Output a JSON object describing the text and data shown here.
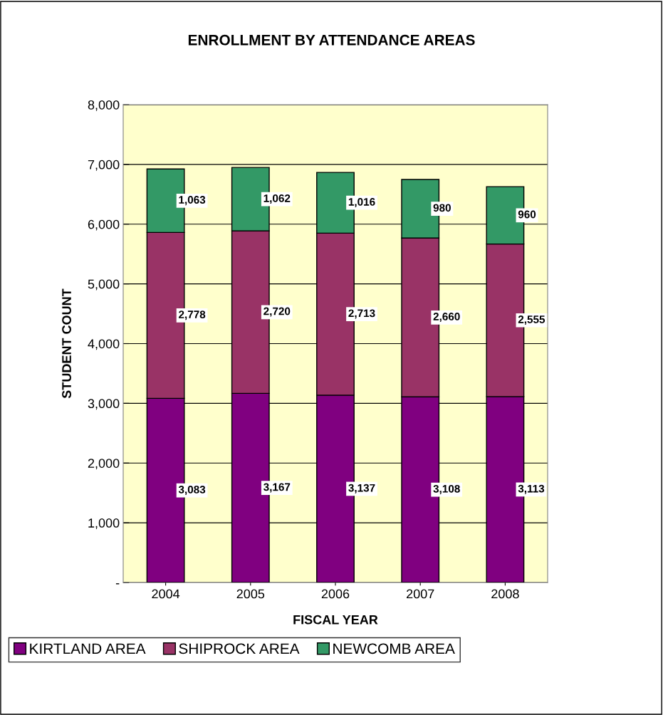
{
  "chart_data": {
    "type": "bar",
    "stacked": true,
    "title": "ENROLLMENT BY ATTENDANCE AREAS",
    "xlabel": "FISCAL YEAR",
    "ylabel": "STUDENT COUNT",
    "categories": [
      "2004",
      "2005",
      "2006",
      "2007",
      "2008"
    ],
    "series": [
      {
        "name": "KIRTLAND AREA",
        "color": "#800080",
        "values": [
          3083,
          3167,
          3137,
          3108,
          3113
        ],
        "value_labels": [
          "3,083",
          "3,167",
          "3,137",
          "3,108",
          "3,113"
        ]
      },
      {
        "name": "SHIPROCK AREA",
        "color": "#993366",
        "values": [
          2778,
          2720,
          2713,
          2660,
          2555
        ],
        "value_labels": [
          "2,778",
          "2,720",
          "2,713",
          "2,660",
          "2,555"
        ]
      },
      {
        "name": "NEWCOMB AREA",
        "color": "#339966",
        "values": [
          1063,
          1062,
          1016,
          980,
          960
        ],
        "value_labels": [
          "1,063",
          "1,062",
          "1,016",
          "980",
          "960"
        ]
      }
    ],
    "ylim": [
      0,
      8000
    ],
    "yticks": [
      {
        "value": 0,
        "label": "-"
      },
      {
        "value": 1000,
        "label": "1,000"
      },
      {
        "value": 2000,
        "label": "2,000"
      },
      {
        "value": 3000,
        "label": "3,000"
      },
      {
        "value": 4000,
        "label": "4,000"
      },
      {
        "value": 5000,
        "label": "5,000"
      },
      {
        "value": 6000,
        "label": "6,000"
      },
      {
        "value": 7000,
        "label": "7,000"
      },
      {
        "value": 8000,
        "label": "8,000"
      }
    ],
    "grid": "y",
    "legend": "bottom"
  }
}
